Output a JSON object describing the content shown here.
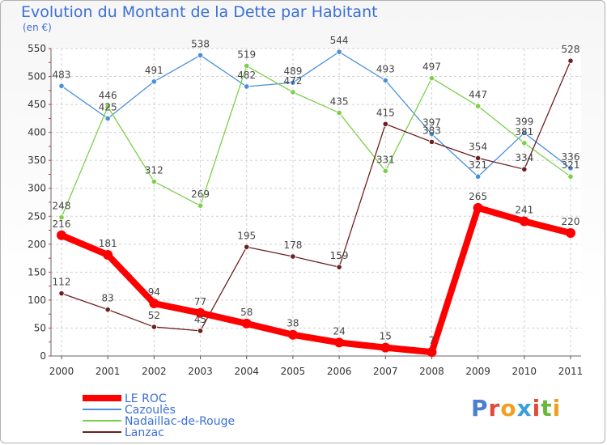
{
  "chart_data": {
    "type": "line",
    "title": "Evolution du Montant de la Dette par Habitant",
    "unit_label": "(en €)",
    "x": [
      "2000",
      "2001",
      "2002",
      "2003",
      "2004",
      "2005",
      "2006",
      "2007",
      "2008",
      "2009",
      "2010",
      "2011"
    ],
    "ylim": [
      0,
      550
    ],
    "yticks": [
      0,
      50,
      100,
      150,
      200,
      250,
      300,
      350,
      400,
      450,
      500,
      550
    ],
    "grid": true,
    "legend_position": "bottom-left",
    "series": [
      {
        "name": "LE ROC",
        "color": "#ff0000",
        "values": [
          216,
          181,
          94,
          77,
          58,
          38,
          24,
          15,
          7,
          265,
          241,
          220
        ]
      },
      {
        "name": "Cazoulès",
        "color": "#4a90d9",
        "values": [
          483,
          425,
          491,
          538,
          482,
          489,
          544,
          493,
          397,
          321,
          399,
          336
        ]
      },
      {
        "name": "Nadaillac-de-Rouge",
        "color": "#7dcf4a",
        "values": [
          248,
          446,
          312,
          269,
          519,
          472,
          435,
          331,
          497,
          447,
          381,
          321
        ]
      },
      {
        "name": "Lanzac",
        "color": "#6e1f1f",
        "values": [
          112,
          83,
          52,
          45,
          195,
          178,
          159,
          415,
          383,
          354,
          334,
          528
        ]
      }
    ]
  },
  "logo": {
    "text": "Proxiti",
    "letters": [
      "P",
      "r",
      "o",
      "x",
      "i",
      "t",
      "i"
    ],
    "colors": [
      "#4a7fd4",
      "#e04a3a",
      "#f0a020",
      "#3aa0d8",
      "#e04a3a",
      "#6ab83a",
      "#f0a020"
    ]
  }
}
